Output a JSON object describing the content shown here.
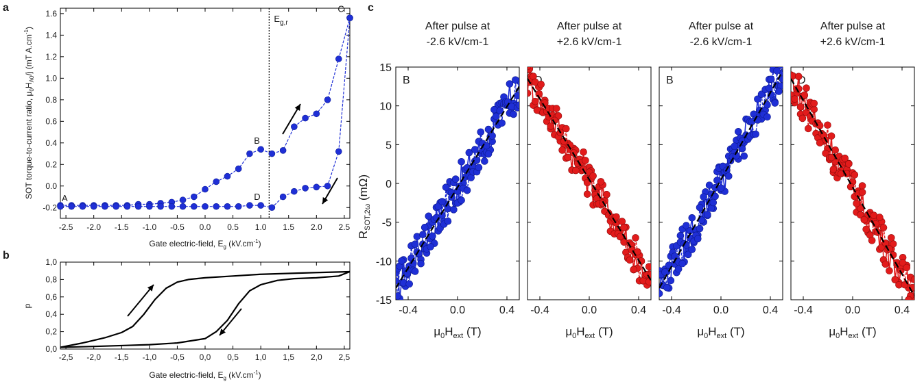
{
  "chart_data": [
    {
      "panel": "a",
      "type": "scatter",
      "xlabel": "Gate electric-field, E_g (kV.cm^-1)",
      "ylabel": "SOT torque-to-current ratio, μ0H_A0/j (mT A.cm^-1)",
      "xlim": [
        -2.6,
        2.6
      ],
      "ylim": [
        -0.3,
        1.65
      ],
      "xticks": [
        "-2.5",
        "-2.0",
        "-1.5",
        "-1.0",
        "-0.5",
        "0.0",
        "0.5",
        "1.0",
        "1.5",
        "2.0",
        "2.5"
      ],
      "yticks": [
        "-0.2",
        "0.0",
        "0.2",
        "0.4",
        "0.6",
        "0.8",
        "1.0",
        "1.2",
        "1.4",
        "1.6"
      ],
      "vline": {
        "x": 1.15,
        "label": "Eg,r"
      },
      "point_labels": [
        {
          "text": "A",
          "x": -2.6,
          "y": -0.18
        },
        {
          "text": "B",
          "x": 1.05,
          "y": 0.34
        },
        {
          "text": "C",
          "x": 2.58,
          "y": 1.55
        },
        {
          "text": "D",
          "x": 1.05,
          "y": -0.18
        }
      ],
      "series": [
        {
          "color": "#1f2fd6",
          "x": [
            -2.6,
            -2.4,
            -2.2,
            -2.0,
            -1.8,
            -1.6,
            -1.4,
            -1.2,
            -1.0,
            -0.8,
            -0.6,
            -0.4,
            -0.2,
            0.0,
            0.2,
            0.4,
            0.6,
            0.8,
            1.0,
            1.2,
            1.4,
            1.6,
            1.8,
            2.0,
            2.2,
            2.4,
            2.6
          ],
          "y": [
            -0.18,
            -0.18,
            -0.18,
            -0.18,
            -0.18,
            -0.18,
            -0.18,
            -0.17,
            -0.17,
            -0.16,
            -0.15,
            -0.13,
            -0.1,
            -0.03,
            0.04,
            0.09,
            0.16,
            0.3,
            0.34,
            0.3,
            0.33,
            0.55,
            0.63,
            0.67,
            0.8,
            1.18,
            1.56
          ]
        },
        {
          "color": "#1f2fd6",
          "x": [
            2.6,
            2.4,
            2.2,
            2.0,
            1.8,
            1.6,
            1.4,
            1.2,
            1.0,
            0.8,
            0.6,
            0.4,
            0.2,
            0.0,
            -0.2,
            -0.4,
            -0.6,
            -0.8,
            -1.0,
            -1.2,
            -1.4,
            -1.6,
            -1.8,
            -2.0,
            -2.2,
            -2.4,
            -2.6
          ],
          "y": [
            1.56,
            0.32,
            0.0,
            -0.01,
            -0.02,
            -0.05,
            -0.1,
            -0.2,
            -0.18,
            -0.18,
            -0.19,
            -0.19,
            -0.19,
            -0.19,
            -0.19,
            -0.19,
            -0.19,
            -0.19,
            -0.19,
            -0.19,
            -0.19,
            -0.19,
            -0.19,
            -0.19,
            -0.19,
            -0.19,
            -0.19
          ]
        }
      ],
      "arrows": [
        "up-right near E=1.8",
        "down-left near E=2.1"
      ]
    },
    {
      "panel": "b",
      "type": "line",
      "xlabel": "Gate electric-field, E_g (kV.cm^-1)",
      "ylabel": "p",
      "xlim": [
        -2.6,
        2.6
      ],
      "ylim": [
        0,
        1.0
      ],
      "xticks": [
        "-2,5",
        "-2,0",
        "-1,5",
        "-1,0",
        "-0,5",
        "0,0",
        "0,5",
        "1,0",
        "1,5",
        "2,0",
        "2,5"
      ],
      "yticks": [
        "0,0",
        "0,2",
        "0,4",
        "0,6",
        "0,8",
        "1,0"
      ],
      "series": [
        {
          "color": "#000000",
          "x": [
            -2.6,
            -2.2,
            -1.8,
            -1.5,
            -1.3,
            -1.1,
            -0.9,
            -0.7,
            -0.5,
            -0.3,
            0.0,
            0.5,
            1.0,
            1.5,
            2.0,
            2.6
          ],
          "y": [
            0.02,
            0.07,
            0.13,
            0.19,
            0.26,
            0.4,
            0.57,
            0.7,
            0.77,
            0.8,
            0.82,
            0.84,
            0.86,
            0.87,
            0.88,
            0.89
          ]
        },
        {
          "color": "#000000",
          "x": [
            -2.6,
            -2.0,
            -1.5,
            -1.0,
            -0.5,
            0.0,
            0.2,
            0.4,
            0.6,
            0.8,
            1.0,
            1.3,
            1.6,
            2.0,
            2.4,
            2.6
          ],
          "y": [
            0.02,
            0.03,
            0.04,
            0.05,
            0.07,
            0.12,
            0.2,
            0.33,
            0.52,
            0.67,
            0.74,
            0.79,
            0.81,
            0.82,
            0.84,
            0.89
          ]
        }
      ],
      "arrows": [
        "up-right near E=-1.0",
        "down-left near E=0.4"
      ]
    },
    {
      "panel": "c",
      "type": "scatter",
      "ylabel": "R_SOT,2ω (mΩ)",
      "ylim": [
        -15,
        15
      ],
      "yticks": [
        "-15",
        "-10",
        "-5",
        "0",
        "5",
        "10",
        "15"
      ],
      "xticks": [
        "-0.4",
        "0.0",
        "0.4"
      ],
      "subplots": [
        {
          "title_line1": "After pulse at",
          "title_line2": "-2.6 kV/cm-1",
          "tag": "B",
          "color": "#1f2fd6",
          "slope": 26,
          "intercept": -0.5,
          "xlabel": "μ0Hext (T)"
        },
        {
          "title_line1": "After pulse at",
          "title_line2": "+2.6 kV/cm-1",
          "tag": "D",
          "color": "#e21b1b",
          "slope": -26,
          "intercept": 0.5,
          "xlabel": "μ0Hext (T)"
        },
        {
          "title_line1": "After pulse at",
          "title_line2": "-2.6 kV/cm-1",
          "tag": "B",
          "color": "#1f2fd6",
          "slope": 28,
          "intercept": 0.5,
          "xlabel": "μ0Hext (T)"
        },
        {
          "title_line1": "After pulse at",
          "title_line2": "+2.6 kV/cm-1",
          "tag": "D",
          "color": "#e21b1b",
          "slope": -28,
          "intercept": -0.5,
          "xlabel": "μ0Hext (T)"
        }
      ]
    }
  ]
}
